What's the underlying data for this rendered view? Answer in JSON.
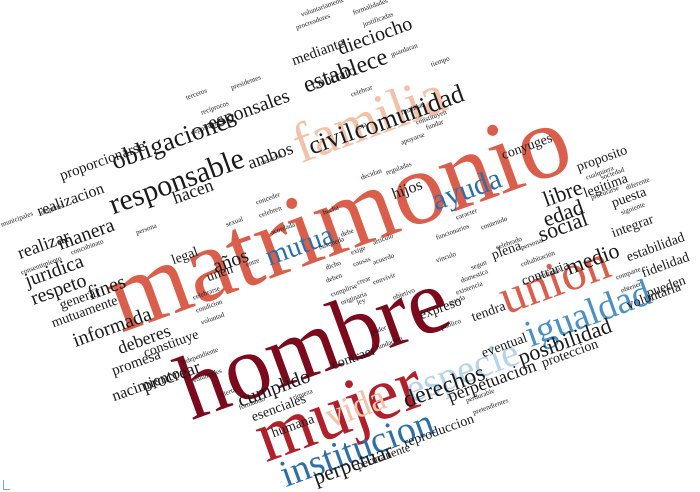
{
  "colors": {
    "dark_red": "#7a0a1c",
    "red": "#b0202a",
    "salmon": "#d95f4c",
    "peach": "#f2c2a8",
    "light_blue": "#b7d3e8",
    "mid_blue": "#4a90c4",
    "blue": "#2c6fa8",
    "dark": "#1a1a1a"
  },
  "words": [
    {
      "text": "matrimonio",
      "color": "salmon"
    },
    {
      "text": "hombre",
      "color": "dark_red"
    },
    {
      "text": "mujer",
      "color": "red"
    },
    {
      "text": "familia",
      "color": "peach"
    },
    {
      "text": "union",
      "color": "salmon"
    },
    {
      "text": "igualdad",
      "color": "mid_blue"
    },
    {
      "text": "especie",
      "color": "light_blue"
    },
    {
      "text": "institucion",
      "color": "blue"
    },
    {
      "text": "ayuda",
      "color": "blue"
    },
    {
      "text": "mutua",
      "color": "blue"
    },
    {
      "text": "vida",
      "color": "peach"
    },
    {
      "text": "responsable",
      "color": "dark"
    },
    {
      "text": "obligaciones",
      "color": "dark"
    },
    {
      "text": "comunidad",
      "color": "dark"
    },
    {
      "text": "civil",
      "color": "dark"
    },
    {
      "text": "establece",
      "color": "dark"
    },
    {
      "text": "esponsales",
      "color": "dark"
    },
    {
      "text": "dieciocho",
      "color": "dark"
    },
    {
      "text": "mediante",
      "color": "dark"
    },
    {
      "text": "ambos",
      "color": "dark"
    },
    {
      "text": "hacen",
      "color": "dark"
    },
    {
      "text": "manera",
      "color": "dark"
    },
    {
      "text": "realizar",
      "color": "dark"
    },
    {
      "text": "realizacion",
      "color": "dark"
    },
    {
      "text": "proporcionarse",
      "color": "dark"
    },
    {
      "text": "juridica",
      "color": "dark"
    },
    {
      "text": "respeto",
      "color": "dark"
    },
    {
      "text": "fines",
      "color": "dark"
    },
    {
      "text": "informada",
      "color": "dark"
    },
    {
      "text": "deberes",
      "color": "dark"
    },
    {
      "text": "promesa",
      "color": "dark"
    },
    {
      "text": "nacimiento",
      "color": "dark"
    },
    {
      "text": "procrear",
      "color": "dark"
    },
    {
      "text": "cumplido",
      "color": "dark"
    },
    {
      "text": "derechos",
      "color": "dark"
    },
    {
      "text": "perpetuar",
      "color": "dark"
    },
    {
      "text": "perpetuacion",
      "color": "dark"
    },
    {
      "text": "posibilidad",
      "color": "dark"
    },
    {
      "text": "social",
      "color": "dark"
    },
    {
      "text": "libre",
      "color": "dark"
    },
    {
      "text": "edad",
      "color": "dark"
    },
    {
      "text": "medio",
      "color": "dark"
    },
    {
      "text": "hijos",
      "color": "dark"
    },
    {
      "text": "años",
      "color": "dark"
    },
    {
      "text": "legal",
      "color": "dark"
    },
    {
      "text": "unen",
      "color": "dark"
    },
    {
      "text": "conyuges",
      "color": "dark"
    },
    {
      "text": "proposito",
      "color": "dark"
    },
    {
      "text": "legitima",
      "color": "dark"
    },
    {
      "text": "puesta",
      "color": "dark"
    },
    {
      "text": "integrar",
      "color": "dark"
    },
    {
      "text": "estabilidad",
      "color": "dark"
    },
    {
      "text": "fidelidad",
      "color": "dark"
    },
    {
      "text": "pueden",
      "color": "dark"
    },
    {
      "text": "voluntaria",
      "color": "dark"
    },
    {
      "text": "plena",
      "color": "dark"
    },
    {
      "text": "contraria",
      "color": "dark"
    },
    {
      "text": "tendra",
      "color": "dark"
    },
    {
      "text": "expreso",
      "color": "dark"
    },
    {
      "text": "eventual",
      "color": "dark"
    },
    {
      "text": "proteccion",
      "color": "dark"
    },
    {
      "text": "contraer",
      "color": "dark"
    },
    {
      "text": "humana",
      "color": "dark"
    },
    {
      "text": "esenciales",
      "color": "dark"
    },
    {
      "text": "reproduccion",
      "color": "dark"
    },
    {
      "text": "permanente",
      "color": "dark"
    },
    {
      "text": "generar",
      "color": "dark"
    },
    {
      "text": "mutuamente",
      "color": "dark"
    },
    {
      "text": "constituye",
      "color": "dark"
    },
    {
      "text": "contrato",
      "color": "dark"
    },
    {
      "text": "formalidades",
      "color": "dark"
    },
    {
      "text": "voluntariamente",
      "color": "dark"
    },
    {
      "text": "procreadores",
      "color": "dark"
    },
    {
      "text": "justificadas",
      "color": "dark"
    },
    {
      "text": "guardaran",
      "color": "dark"
    },
    {
      "text": "tiempo",
      "color": "dark"
    },
    {
      "text": "recíprocos",
      "color": "dark"
    },
    {
      "text": "presidentes",
      "color": "dark"
    },
    {
      "text": "terceros",
      "color": "dark"
    },
    {
      "text": "celebrar",
      "color": "dark"
    },
    {
      "text": "finalidad",
      "color": "dark"
    },
    {
      "text": "constituyen",
      "color": "dark"
    },
    {
      "text": "apoyarse",
      "color": "dark"
    },
    {
      "text": "decidan",
      "color": "dark"
    },
    {
      "text": "reguladas",
      "color": "dark"
    },
    {
      "text": "derecho",
      "color": "dark"
    },
    {
      "text": "deposicion",
      "color": "dark"
    },
    {
      "text": "municipales",
      "color": "dark"
    },
    {
      "text": "dispensa",
      "color": "dark"
    },
    {
      "text": "concubinato",
      "color": "dark"
    },
    {
      "text": "persona",
      "color": "dark"
    },
    {
      "text": "conceder",
      "color": "dark"
    },
    {
      "text": "celebren",
      "color": "dark"
    },
    {
      "text": "sexual",
      "color": "dark"
    },
    {
      "text": "acordada",
      "color": "dark"
    },
    {
      "text": "hecha",
      "color": "dark"
    },
    {
      "text": "busqueda",
      "color": "dark"
    },
    {
      "text": "caracter",
      "color": "dark"
    },
    {
      "text": "funcionarios",
      "color": "dark"
    },
    {
      "text": "contenido",
      "color": "dark"
    },
    {
      "text": "vinculo",
      "color": "dark"
    },
    {
      "text": "debe",
      "color": "dark"
    },
    {
      "text": "exige",
      "color": "dark"
    },
    {
      "text": "causas",
      "color": "dark"
    },
    {
      "text": "crear",
      "color": "dark"
    },
    {
      "text": "ley",
      "color": "dark"
    },
    {
      "text": "deben",
      "color": "dark"
    },
    {
      "text": "dicho",
      "color": "dark"
    },
    {
      "text": "cumplirse",
      "color": "dark"
    },
    {
      "text": "segun",
      "color": "dark"
    },
    {
      "text": "celebrado",
      "color": "dark"
    },
    {
      "text": "personal",
      "color": "dark"
    },
    {
      "text": "cohabitación",
      "color": "dark"
    },
    {
      "text": "contraiga",
      "color": "dark"
    },
    {
      "text": "sociedad",
      "color": "dark"
    },
    {
      "text": "cualquiera",
      "color": "dark"
    },
    {
      "text": "procurarse",
      "color": "dark"
    },
    {
      "text": "diferente",
      "color": "dark"
    },
    {
      "text": "siguiente",
      "color": "dark"
    },
    {
      "text": "comparte",
      "color": "dark"
    },
    {
      "text": "obtener",
      "color": "dark"
    },
    {
      "text": "domestica",
      "color": "dark"
    },
    {
      "text": "existencia",
      "color": "dark"
    },
    {
      "text": "pueda",
      "color": "dark"
    },
    {
      "text": "publico",
      "color": "dark"
    },
    {
      "text": "poder",
      "color": "dark"
    },
    {
      "text": "fundacion",
      "color": "dark"
    },
    {
      "text": "perdurable",
      "color": "dark"
    },
    {
      "text": "celebrarse",
      "color": "dark"
    },
    {
      "text": "condicion",
      "color": "dark"
    },
    {
      "text": "voluntad",
      "color": "dark"
    },
    {
      "text": "originaria",
      "color": "dark"
    },
    {
      "text": "independiente",
      "color": "dark"
    },
    {
      "text": "voluntades",
      "color": "dark"
    },
    {
      "text": "formando",
      "color": "dark"
    },
    {
      "text": "riqueza",
      "color": "dark"
    },
    {
      "text": "pretendientes",
      "color": "dark"
    },
    {
      "text": "cierta",
      "color": "dark"
    },
    {
      "text": "consentimiento",
      "color": "dark"
    },
    {
      "text": "entre",
      "color": "dark"
    },
    {
      "text": "ésta",
      "color": "dark"
    },
    {
      "text": "fundar",
      "color": "dark"
    },
    {
      "text": "objetivo",
      "color": "dark"
    },
    {
      "text": "articulo",
      "color": "dark"
    },
    {
      "text": "acuerdo",
      "color": "dark"
    },
    {
      "text": "convivir",
      "color": "dark"
    }
  ]
}
